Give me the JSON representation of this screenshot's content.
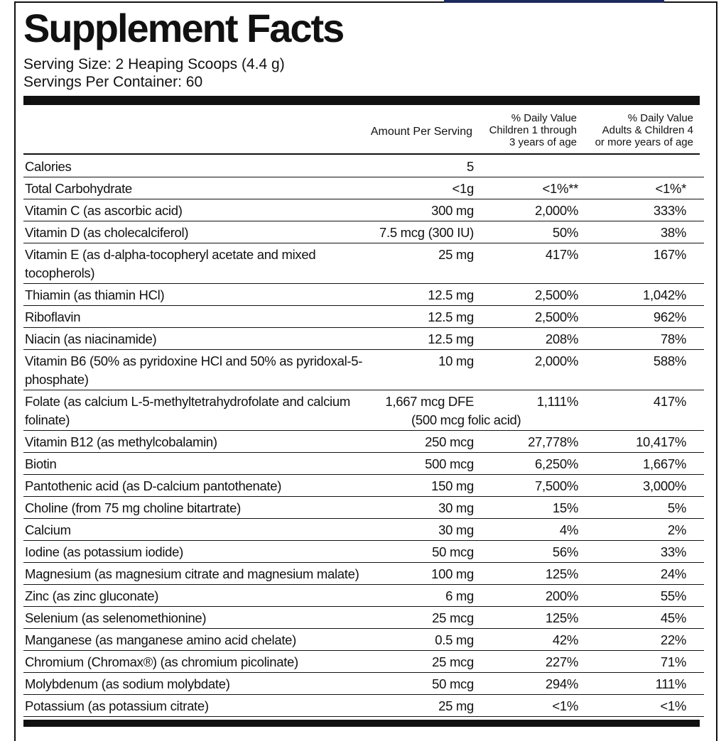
{
  "header": {
    "title": "Supplement Facts",
    "serving_size": "Serving Size: 2 Heaping Scoops (4.4 g)",
    "servings_per_container": "Servings Per Container: 60"
  },
  "columns": {
    "amount": "Amount Per Serving",
    "children": [
      "% Daily Value",
      "Children 1 through",
      "3 years of age"
    ],
    "adults": [
      "% Daily Value",
      "Adults & Children 4",
      "or more years of age"
    ]
  },
  "rows": [
    {
      "name": "Calories",
      "amount": "5"
    },
    {
      "name": "Total Carbohydrate",
      "amount": "<1g",
      "children": "<1%**",
      "adults": "<1%*"
    },
    {
      "name": "Vitamin C (as ascorbic acid)",
      "amount": "300 mg",
      "children": "2,000%",
      "adults": "333%"
    },
    {
      "name": "Vitamin D (as cholecalciferol)",
      "amount": "7.5 mcg (300 IU)",
      "children": "50%",
      "adults": "38%"
    },
    {
      "name": "Vitamin E (as d-alpha-tocopheryl acetate and mixed tocopherols)",
      "amount": "25 mg",
      "children": "417%",
      "adults": "167%"
    },
    {
      "name": "Thiamin (as thiamin HCl)",
      "amount": "12.5 mg",
      "children": "2,500%",
      "adults": "1,042%"
    },
    {
      "name": "Riboflavin",
      "amount": "12.5 mg",
      "children": "2,500%",
      "adults": "962%"
    },
    {
      "name": "Niacin (as niacinamide)",
      "amount": "12.5 mg",
      "children": "208%",
      "adults": "78%"
    },
    {
      "name": "Vitamin B6 (50% as pyridoxine HCl and 50% as pyridoxal-5-phosphate)",
      "amount": "10 mg",
      "children": "2,000%",
      "adults": "588%"
    },
    {
      "name": "Folate (as calcium L-5-methyltetrahydrofolate and calcium folinate)",
      "amount": "1,667 mcg DFE",
      "amount_note": "(500 mcg folic acid)",
      "children": "1,111%",
      "adults": "417%"
    },
    {
      "name": "Vitamin B12 (as methylcobalamin)",
      "amount": "250 mcg",
      "children": "27,778%",
      "adults": "10,417%"
    },
    {
      "name": "Biotin",
      "amount": "500 mcg",
      "children": "6,250%",
      "adults": "1,667%"
    },
    {
      "name": "Pantothenic acid (as D-calcium pantothenate)",
      "amount": "150 mg",
      "children": "7,500%",
      "adults": "3,000%"
    },
    {
      "name": "Choline (from 75 mg choline bitartrate)",
      "amount": "30 mg",
      "children": "15%",
      "adults": "5%"
    },
    {
      "name": "Calcium",
      "amount": "30 mg",
      "children": "4%",
      "adults": "2%"
    },
    {
      "name": "Iodine (as potassium iodide)",
      "amount": "50 mcg",
      "children": "56%",
      "adults": "33%"
    },
    {
      "name": "Magnesium (as magnesium citrate and magnesium malate)",
      "amount": "100 mg",
      "children": "125%",
      "adults": "24%"
    },
    {
      "name": "Zinc (as zinc gluconate)",
      "amount": "6 mg",
      "children": "200%",
      "adults": "55%"
    },
    {
      "name": "Selenium (as selenomethionine)",
      "amount": "25 mcg",
      "children": "125%",
      "adults": "45%"
    },
    {
      "name": "Manganese (as manganese amino acid chelate)",
      "amount": "0.5 mg",
      "children": "42%",
      "adults": "22%"
    },
    {
      "name": "Chromium (Chromax®) (as chromium picolinate)",
      "amount": "25 mcg",
      "children": "227%",
      "adults": "71%"
    },
    {
      "name": "Molybdenum (as sodium molybdate)",
      "amount": "50 mcg",
      "children": "294%",
      "adults": "111%"
    },
    {
      "name": "Potassium (as potassium citrate)",
      "amount": "25 mg",
      "children": "<1%",
      "adults": "<1%"
    }
  ]
}
